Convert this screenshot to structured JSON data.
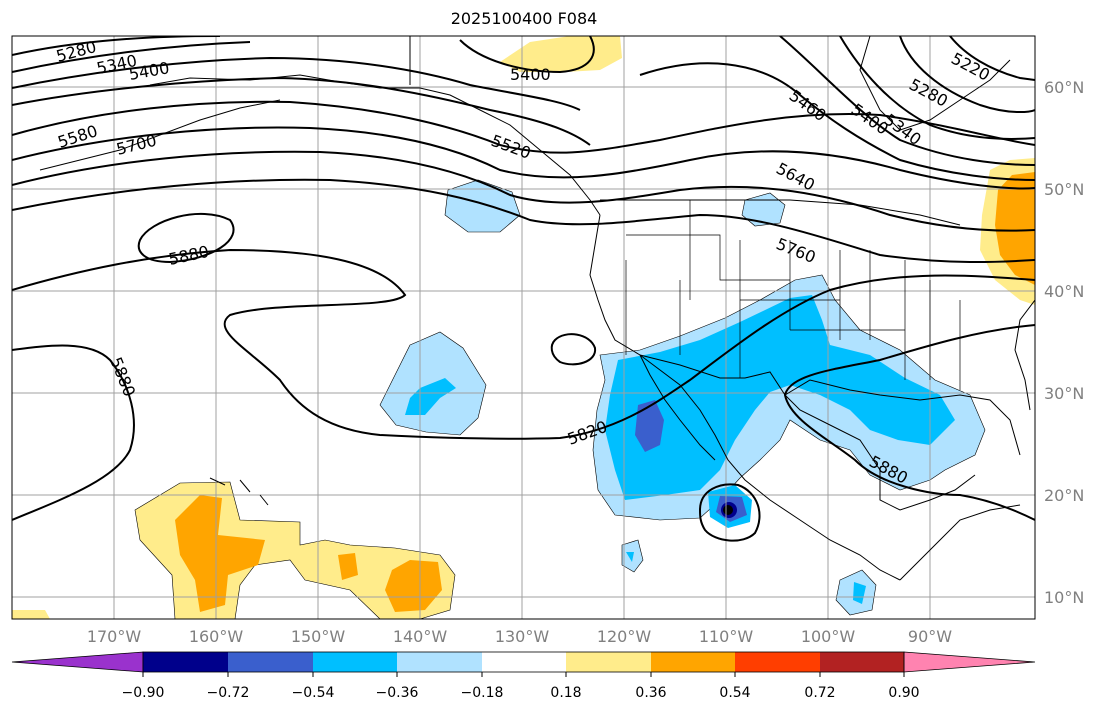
{
  "title": "2025100400 F084",
  "colors": {
    "ocean": "#ffffff",
    "grid": "#a0a0a0",
    "coast": "#000000",
    "contour": "#000000"
  },
  "longitude_labels": [
    "170°W",
    "160°W",
    "150°W",
    "140°W",
    "130°W",
    "120°W",
    "110°W",
    "100°W",
    "90°W"
  ],
  "latitude_labels": [
    "60°N",
    "50°N",
    "40°N",
    "30°N",
    "20°N",
    "10°N"
  ],
  "contour_labels": [
    "5280",
    "5340",
    "5400",
    "5580",
    "5700",
    "5880",
    "5880",
    "5400",
    "5460",
    "5400",
    "5340",
    "5280",
    "5220",
    "5640",
    "5760",
    "5820",
    "5880",
    "5520"
  ],
  "colorbar": {
    "ticks": [
      "−0.90",
      "−0.72",
      "−0.54",
      "−0.36",
      "−0.18",
      "0.18",
      "0.36",
      "0.54",
      "0.72",
      "0.90"
    ],
    "colors": [
      "#9a32cd",
      "#00008b",
      "#3a5fcd",
      "#00bfff",
      "#b0e2ff",
      "#ffffff",
      "#ffec8b",
      "#ffa500",
      "#ff3e00",
      "#b22222",
      "#ff83b0"
    ]
  }
}
